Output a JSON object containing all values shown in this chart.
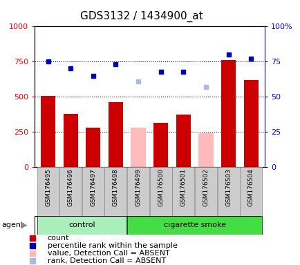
{
  "title": "GDS3132 / 1434900_at",
  "samples": [
    "GSM176495",
    "GSM176496",
    "GSM176497",
    "GSM176498",
    "GSM176499",
    "GSM176500",
    "GSM176501",
    "GSM176502",
    "GSM176503",
    "GSM176504"
  ],
  "bar_values": [
    505,
    380,
    280,
    460,
    280,
    315,
    375,
    240,
    760,
    620
  ],
  "bar_colors": [
    "#cc0000",
    "#cc0000",
    "#cc0000",
    "#cc0000",
    "#ffbbbb",
    "#cc0000",
    "#cc0000",
    "#ffbbbb",
    "#cc0000",
    "#cc0000"
  ],
  "rank_values": [
    75,
    70,
    65,
    73,
    61,
    68,
    68,
    57,
    80,
    77
  ],
  "rank_colors": [
    "#0000bb",
    "#0000bb",
    "#0000bb",
    "#0000bb",
    "#aabbdd",
    "#0000bb",
    "#0000bb",
    "#aabbdd",
    "#0000bb",
    "#0000bb"
  ],
  "ylim_left": [
    0,
    1000
  ],
  "ylim_right": [
    0,
    100
  ],
  "yticks_left": [
    0,
    250,
    500,
    750,
    1000
  ],
  "yticks_right": [
    0,
    25,
    50,
    75,
    100
  ],
  "ytick_labels_left": [
    "0",
    "250",
    "500",
    "750",
    "1000"
  ],
  "ytick_labels_right": [
    "0",
    "25",
    "50",
    "75",
    "100%"
  ],
  "control_label": "control",
  "smoke_label": "cigarette smoke",
  "agent_label": "agent",
  "legend_items": [
    {
      "color": "#cc0000",
      "label": "count"
    },
    {
      "color": "#0000bb",
      "label": "percentile rank within the sample"
    },
    {
      "color": "#ffbbbb",
      "label": "value, Detection Call = ABSENT"
    },
    {
      "color": "#aabbdd",
      "label": "rank, Detection Call = ABSENT"
    }
  ],
  "control_bg": "#aaeebb",
  "smoke_bg": "#44dd44",
  "xticklabel_bg": "#cccccc",
  "title_fontsize": 11,
  "tick_fontsize": 8,
  "legend_fontsize": 8
}
